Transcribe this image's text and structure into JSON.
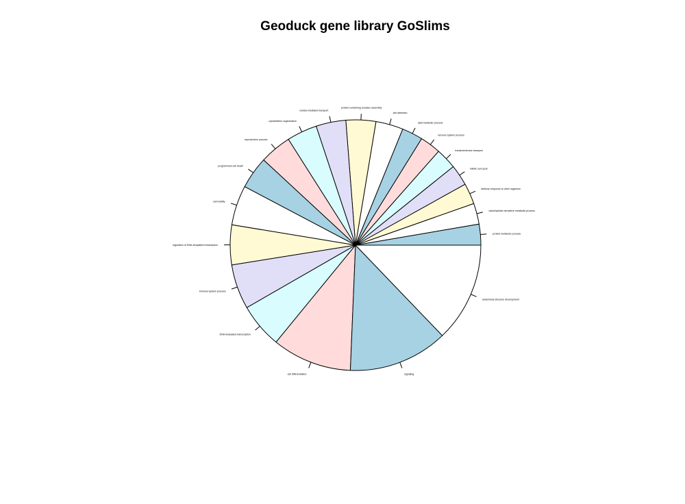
{
  "chart_data": {
    "type": "pie",
    "title": "Geoduck gene library GoSlims",
    "palette": [
      "#a6d2e3",
      "#ffffff",
      "#fffad3",
      "#e1dff8",
      "#d9fdff",
      "#ffdcdb"
    ],
    "slices": [
      {
        "label": "protein metabolic process",
        "value": 4.2
      },
      {
        "label": "carbohydrate derivative metabolic process",
        "value": 4.2
      },
      {
        "label": "defense response to other organism",
        "value": 4.2
      },
      {
        "label": "mitotic cell cycle",
        "value": 4.2
      },
      {
        "label": "transmembrane transport",
        "value": 4.2
      },
      {
        "label": "nervous system process",
        "value": 4.2
      },
      {
        "label": "lipid metabolic process",
        "value": 4.2
      },
      {
        "label": "cell adhesion",
        "value": 5.5
      },
      {
        "label": "protein-containing complex assembly",
        "value": 6.0
      },
      {
        "label": "vesicle-mediated transport",
        "value": 6.0
      },
      {
        "label": "cytoskeleton organization",
        "value": 6.1
      },
      {
        "label": "reproductive process",
        "value": 6.4
      },
      {
        "label": "programmed cell death",
        "value": 6.5
      },
      {
        "label": "cell motility",
        "value": 8.0
      },
      {
        "label": "regulation of DNA-templated transcription",
        "value": 8.0
      },
      {
        "label": "immune system process",
        "value": 9.0
      },
      {
        "label": "DNA-templated transcription",
        "value": 9.0
      },
      {
        "label": "cell differentiation",
        "value": 16.0
      },
      {
        "label": "signaling",
        "value": 20.0
      },
      {
        "label": "anatomical structure development",
        "value": 20.0
      },
      {
        "label": "",
        "value": 0.0
      },
      {
        "label": "",
        "value": 0.0
      },
      {
        "label": "",
        "value": 0.0
      }
    ]
  }
}
